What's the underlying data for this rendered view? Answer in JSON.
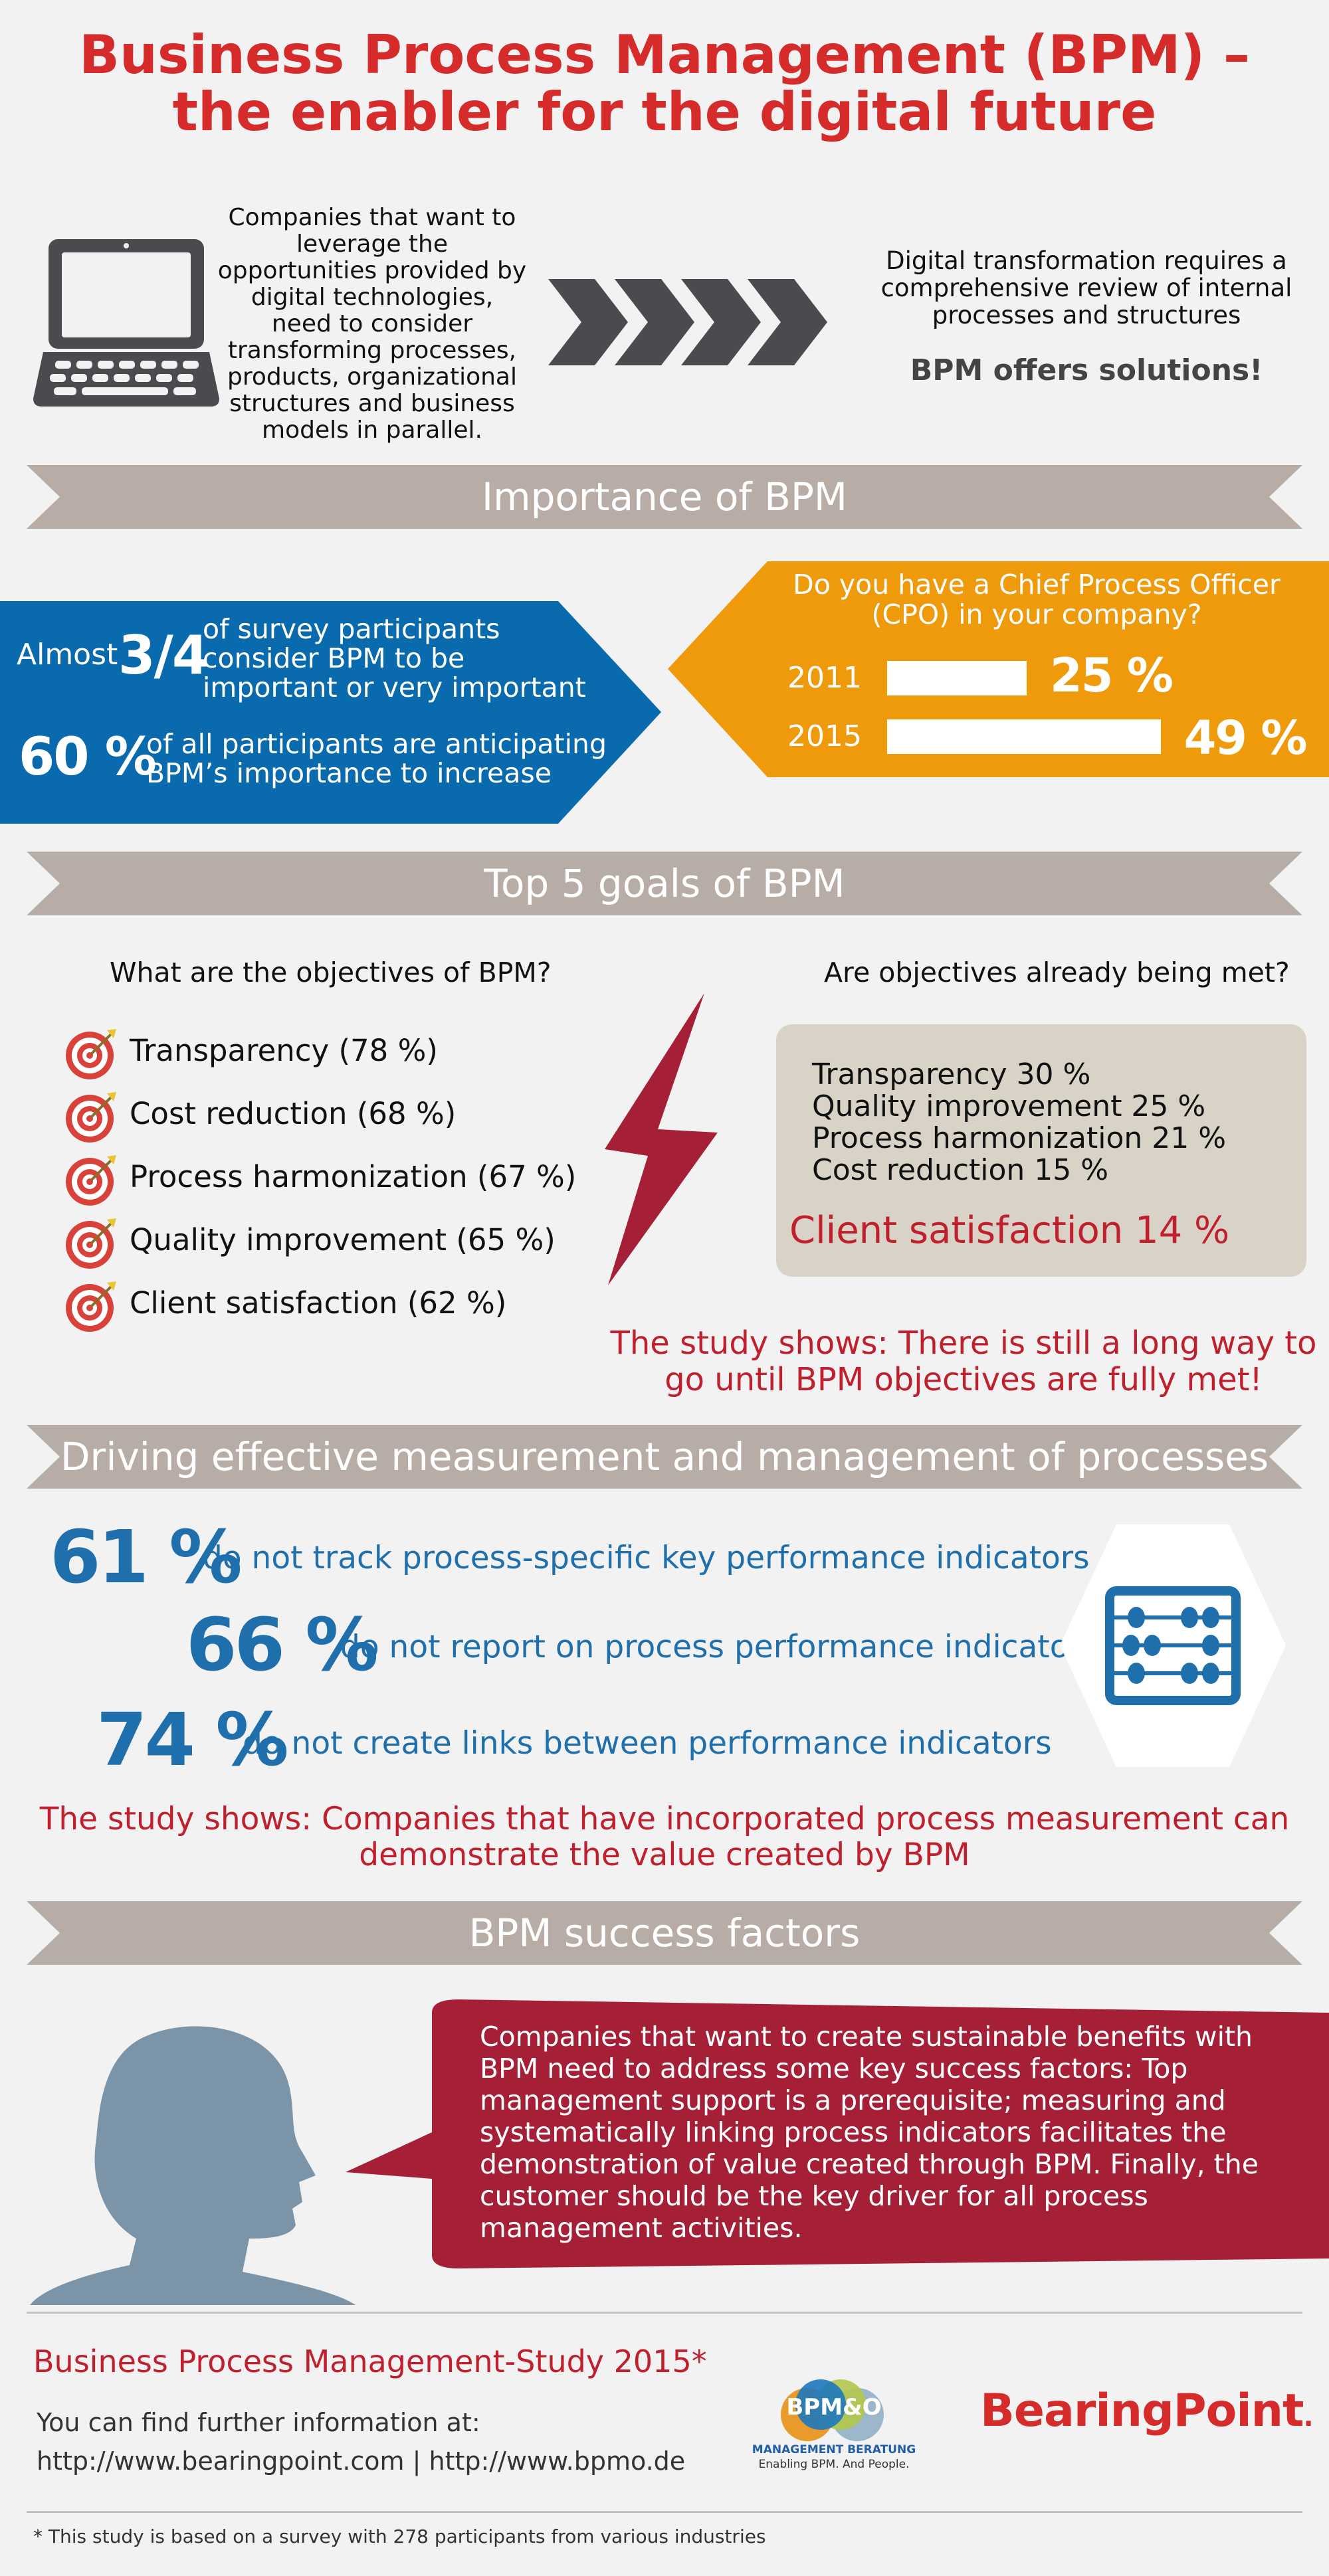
{
  "header": {
    "title_line1": "Business Process Management (BPM) –",
    "title_line2": "the enabler for the digital future"
  },
  "intro": {
    "left_text": [
      "Companies that want to",
      "leverage the",
      "opportunities provided by",
      "digital technologies,",
      "need to consider",
      "transforming processes,",
      "products, organizational",
      "structures and business",
      "models in parallel."
    ],
    "right_text": [
      "Digital transformation requires a",
      "comprehensive review of internal",
      "processes and structures"
    ],
    "right_highlight": "BPM offers solutions!",
    "left_icon": "laptop-icon",
    "arrow_icon": "chevrons-right-icon"
  },
  "importance": {
    "banner": "Importance of BPM",
    "stat1_prefix": "Almost",
    "stat1_value": "3/4",
    "stat1_text": [
      "of survey participants",
      "consider BPM to be",
      "important or very important"
    ],
    "stat2_value": "60 %",
    "stat2_text": [
      "of all participants are anticipating",
      "BPM’s importance to increase"
    ],
    "cpo_question": [
      "Do you have a Chief Process Officer",
      "(CPO) in your company?"
    ],
    "cpo_bars": [
      {
        "year": "2011",
        "percent": 25,
        "label": "25 %"
      },
      {
        "year": "2015",
        "percent": 49,
        "label": "49 %"
      }
    ],
    "colors": {
      "blue": "#0a6aae",
      "orange": "#ee9a0b"
    }
  },
  "goals": {
    "banner": "Top 5 goals of BPM",
    "left_heading": "What are the objectives of BPM?",
    "right_heading": "Are objectives already being met?",
    "objectives": [
      "Transparency (78 %)",
      "Cost reduction (68 %)",
      "Process harmonization (67 %)",
      "Quality improvement (65 %)",
      "Client satisfaction (62 %)"
    ],
    "met": [
      "Transparency 30 %",
      "Quality improvement 25 %",
      "Process harmonization 21 %",
      "Cost reduction 15 %"
    ],
    "met_highlight": "Client satisfaction 14 %",
    "conclusion": [
      "The study shows: There is still a long way to",
      "go until BPM objectives are fully met!"
    ],
    "icon": "target-icon",
    "bolt_icon": "lightning-bolt-icon"
  },
  "measurement": {
    "banner": "Driving effective measurement and management of processes",
    "stats": [
      {
        "value": "61 %",
        "text": "do not track process-specific key performance indicators"
      },
      {
        "value": "66 %",
        "text": "do not report on process performance indicators"
      },
      {
        "value": "74 %",
        "text": "do not create links between performance indicators"
      }
    ],
    "conclusion": [
      "The study shows: Companies that have incorporated process measurement can",
      "demonstrate the value created by BPM"
    ],
    "icon": "abacus-icon"
  },
  "success": {
    "banner": "BPM success factors",
    "bubble_text": [
      "Companies that want to create sustainable benefits with",
      "BPM need to address some key success factors: Top",
      "management support is a prerequisite; measuring and",
      "systematically linking process indicators facilitates the",
      "demonstration of value created through BPM. Finally, the",
      "customer should be the key driver for all process",
      "management activities."
    ],
    "icon": "person-head-icon"
  },
  "footer": {
    "study_title": "Business Process Management-Study 2015*",
    "info_label": "You can find further information at:",
    "links": "http://www.bearingpoint.com | http://www.bpmo.de",
    "logo_bpmo": "BPM&O",
    "logo_bpmo_sub1": "MANAGEMENT BERATUNG",
    "logo_bpmo_sub2": "Enabling BPM. And People.",
    "logo_bearingpoint": "BearingPoint",
    "logo_bearingpoint_mark": ".",
    "footnote": "* This study is based on a survey with 278 participants from various industries"
  }
}
